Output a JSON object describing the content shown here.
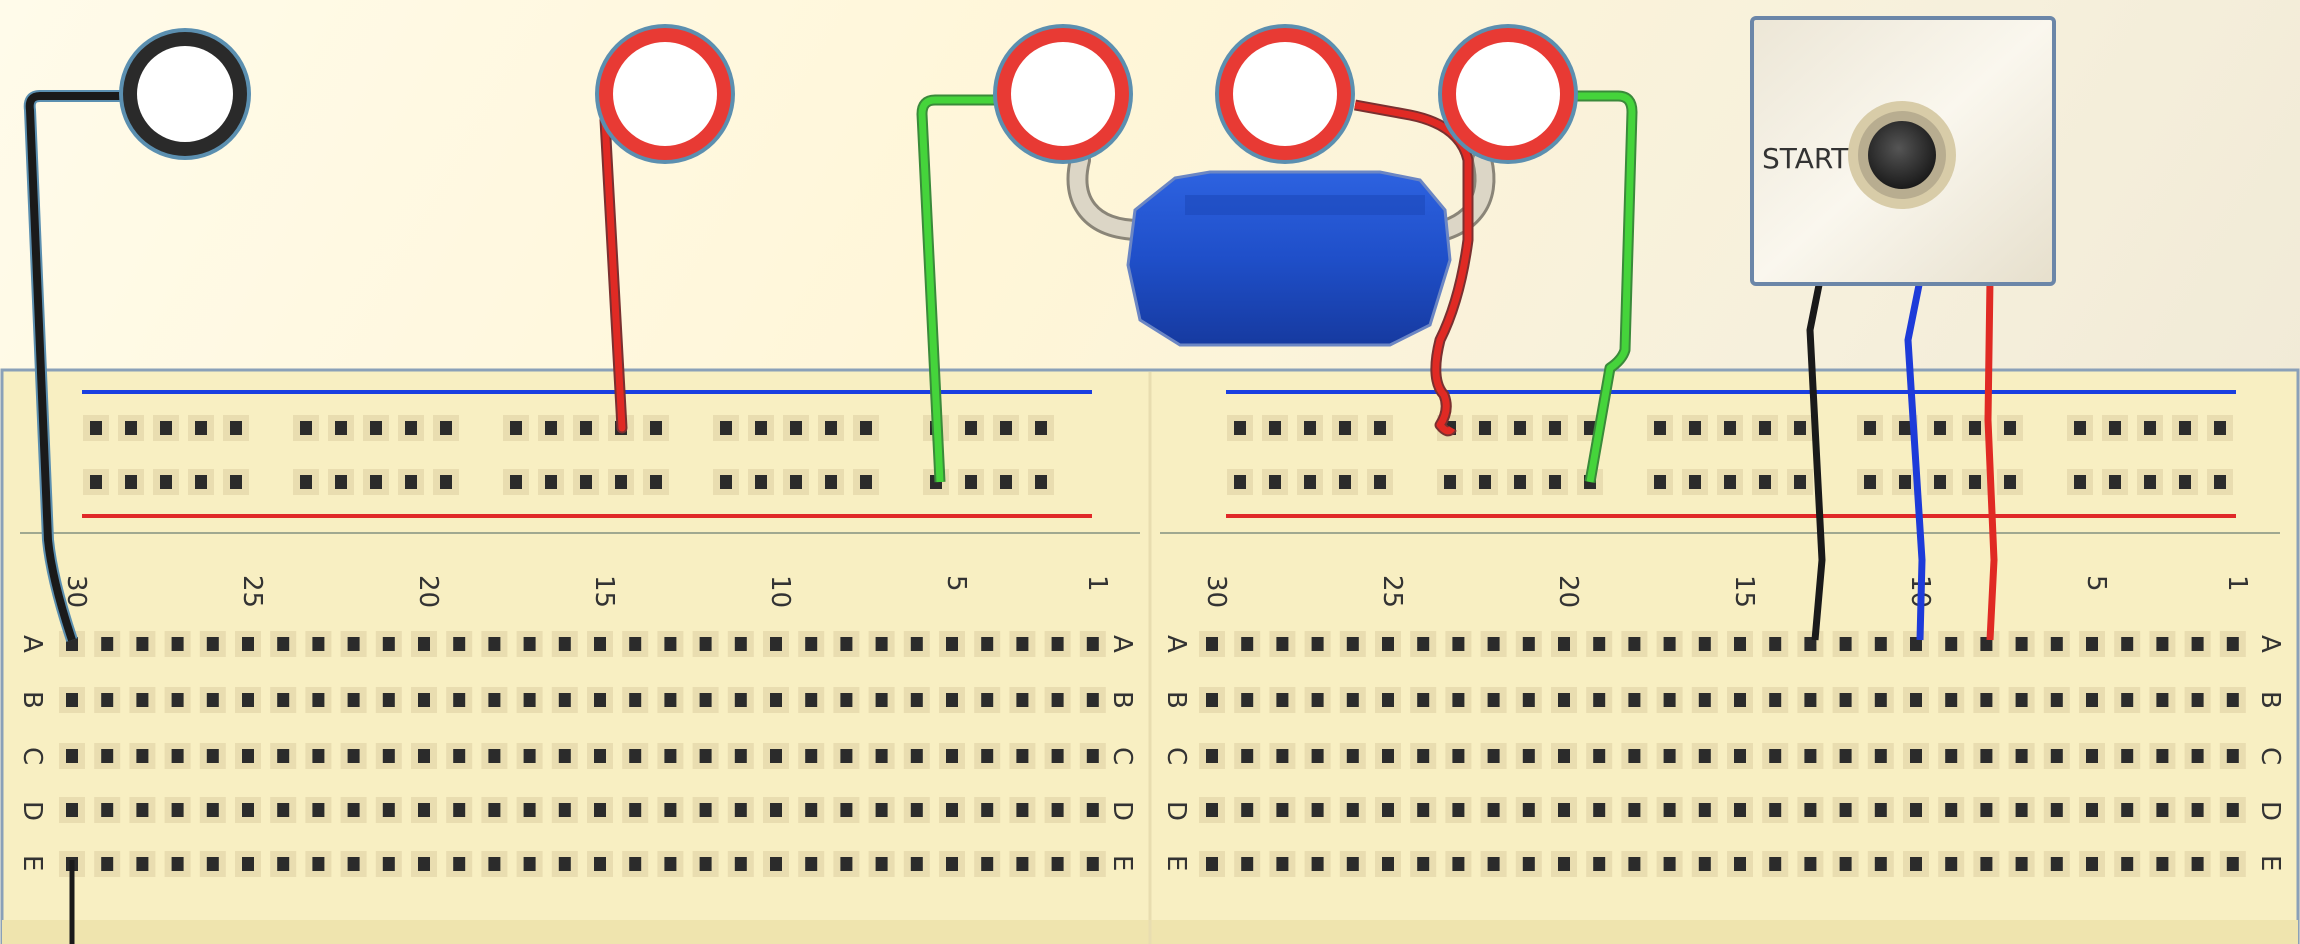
{
  "breadboard": {
    "column_labels": [
      "30",
      "25",
      "20",
      "15",
      "10",
      "5",
      "1"
    ],
    "row_letters": [
      "A",
      "B",
      "C",
      "D",
      "E"
    ]
  },
  "switch": {
    "label": "START"
  },
  "colors": {
    "board": "#f8efc2",
    "rail_blue": "#1a3fe0",
    "rail_red": "#e02828",
    "wire_black": "#1a1a1a",
    "wire_red": "#e02a24",
    "wire_green": "#45d43b",
    "wire_blue": "#1d3bd9",
    "capacitor": "#1f4fc9",
    "node_red": "#e83a34",
    "node_black": "#2a2a2a"
  },
  "icons": {
    "nodes": "ring-node-icon",
    "capacitor": "capacitor-icon",
    "switch": "pushbutton-icon"
  }
}
